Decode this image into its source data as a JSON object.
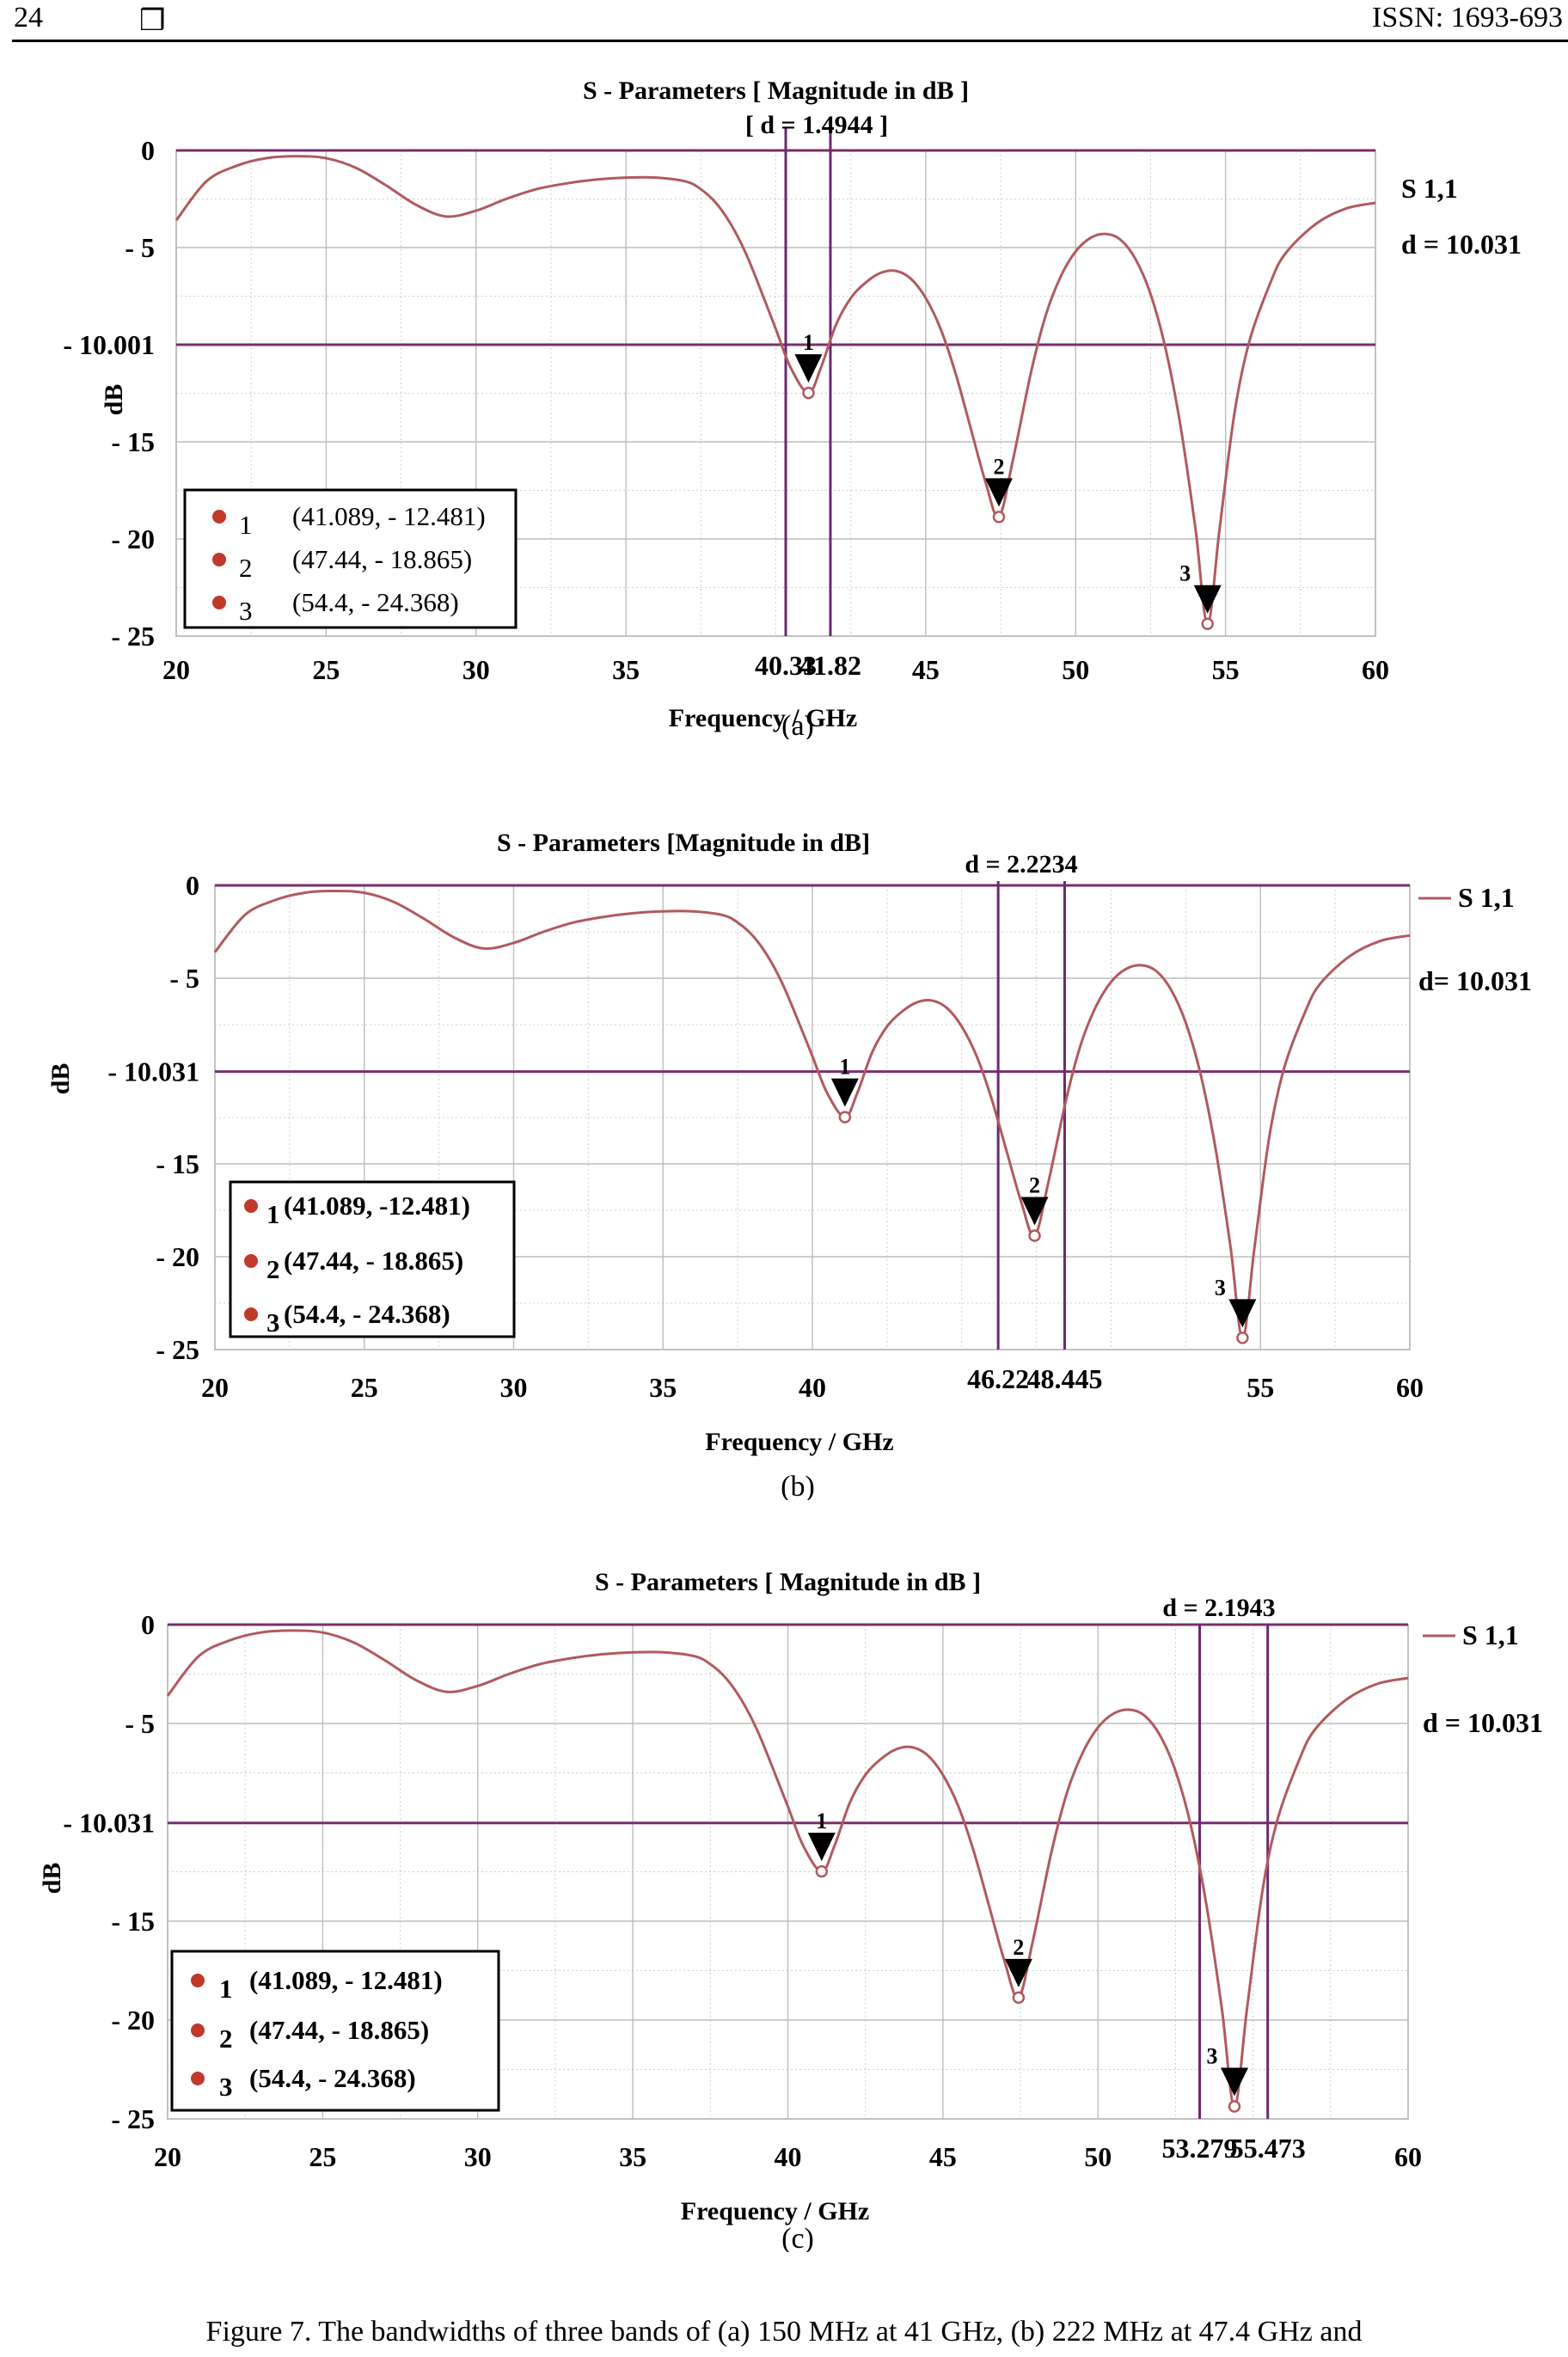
{
  "header": {
    "page_number": "24",
    "box_glyph": "❒",
    "issn": "ISSN: 1693-693"
  },
  "caption": "Figure 7. The bandwidths of three bands of (a) 150 MHz at 41 GHz, (b) 222 MHz at 47.4 GHz and",
  "chart_data": [
    {
      "type": "line",
      "sublabel": "(a)",
      "title": "S - Parameters [ Magnitude in dB ]",
      "subtitle": "[ d = 1.4944 ]",
      "xlabel": "Frequency / GHz",
      "ylabel": "dB",
      "xlim": [
        20,
        60
      ],
      "ylim": [
        -25,
        0
      ],
      "xticks": [
        20,
        25,
        30,
        35,
        45,
        50,
        55,
        60
      ],
      "xtick_labels": [
        "20",
        "25",
        "30",
        "35",
        "45",
        "50",
        "55",
        "60"
      ],
      "yticks": [
        0,
        -5,
        -10.001,
        -15,
        -20,
        -25
      ],
      "ytick_labels": [
        "0",
        "- 5",
        "- 10.001",
        "- 15",
        "- 20",
        "- 25"
      ],
      "threshold": -10.001,
      "bandwidth_lines": [
        40.33,
        41.82
      ],
      "bandwidth_labels": [
        "40.33",
        "41.82"
      ],
      "series_label": "S 1,1",
      "series_color": "#b05a5e",
      "legend_line": false,
      "d_label": "d = 10.031",
      "legend": [
        {
          "num": "1",
          "text": "(41.089, - 12.481)"
        },
        {
          "num": "2",
          "text": "(47.44, - 18.865)"
        },
        {
          "num": "3",
          "text": "(54.4, - 24.368)"
        }
      ],
      "markers": [
        {
          "label": "1",
          "x": 41.089,
          "y": -12.481
        },
        {
          "label": "2",
          "x": 47.44,
          "y": -18.865
        },
        {
          "label": "3",
          "x": 54.4,
          "y": -24.368
        }
      ],
      "x": [
        20,
        21,
        22,
        23,
        24,
        25,
        26,
        27,
        28,
        29,
        30,
        31,
        32,
        33,
        34,
        35,
        36,
        37,
        37.5,
        38,
        38.5,
        39,
        39.5,
        40,
        40.5,
        41.089,
        41.5,
        42,
        42.5,
        43,
        43.5,
        44,
        44.5,
        45,
        45.5,
        46,
        46.5,
        47,
        47.44,
        47.9,
        48.5,
        49,
        49.5,
        50,
        50.5,
        51,
        51.5,
        52,
        52.5,
        53,
        53.5,
        54,
        54.4,
        54.8,
        55.3,
        55.8,
        56.5,
        57,
        58,
        59,
        60
      ],
      "y": [
        -3.6,
        -1.6,
        -0.8,
        -0.4,
        -0.3,
        -0.4,
        -0.9,
        -1.8,
        -2.8,
        -3.4,
        -3.1,
        -2.5,
        -2.0,
        -1.7,
        -1.5,
        -1.4,
        -1.4,
        -1.6,
        -2.0,
        -2.7,
        -3.8,
        -5.3,
        -7.2,
        -9.2,
        -11.2,
        -12.481,
        -11.2,
        -9.0,
        -7.6,
        -6.8,
        -6.3,
        -6.2,
        -6.6,
        -7.6,
        -9.2,
        -11.5,
        -14.3,
        -17.1,
        -18.865,
        -16.0,
        -11.5,
        -8.5,
        -6.5,
        -5.2,
        -4.5,
        -4.3,
        -4.6,
        -5.6,
        -7.4,
        -10.2,
        -14.2,
        -19.5,
        -24.368,
        -19.5,
        -13.5,
        -9.8,
        -6.8,
        -5.3,
        -3.8,
        -3.0,
        -2.7
      ]
    },
    {
      "type": "line",
      "sublabel": "(b)",
      "title": "S - Parameters [Magnitude in dB]",
      "subtitle": "d = 2.2234",
      "xlabel": "Frequency / GHz",
      "ylabel": "dB",
      "xlim": [
        20,
        60
      ],
      "ylim": [
        -25,
        0
      ],
      "xticks": [
        20,
        25,
        30,
        35,
        40,
        55,
        60
      ],
      "xtick_labels": [
        "20",
        "25",
        "30",
        "35",
        "40",
        "55",
        "60"
      ],
      "yticks": [
        0,
        -5,
        -10.031,
        -15,
        -20,
        -25
      ],
      "ytick_labels": [
        "0",
        "- 5",
        "- 10.031",
        "- 15",
        "- 20",
        "- 25"
      ],
      "threshold": -10.031,
      "bandwidth_lines": [
        46.22,
        48.445
      ],
      "bandwidth_labels": [
        "46.22",
        "48.445"
      ],
      "series_label": "S 1,1",
      "series_color": "#b05a5e",
      "legend_line": true,
      "d_label": "d= 10.031",
      "legend": [
        {
          "num": "1",
          "text": "(41.089, -12.481)"
        },
        {
          "num": "2",
          "text": "(47.44, - 18.865)"
        },
        {
          "num": "3",
          "text": "(54.4, - 24.368)"
        }
      ],
      "markers": [
        {
          "label": "1",
          "x": 41.089,
          "y": -12.481
        },
        {
          "label": "2",
          "x": 47.44,
          "y": -18.865
        },
        {
          "label": "3",
          "x": 54.4,
          "y": -24.368
        }
      ],
      "x": [
        20,
        21,
        22,
        23,
        24,
        25,
        26,
        27,
        28,
        29,
        30,
        31,
        32,
        33,
        34,
        35,
        36,
        37,
        37.5,
        38,
        38.5,
        39,
        39.5,
        40,
        40.5,
        41.089,
        41.5,
        42,
        42.5,
        43,
        43.5,
        44,
        44.5,
        45,
        45.5,
        46,
        46.5,
        47,
        47.44,
        47.9,
        48.5,
        49,
        49.5,
        50,
        50.5,
        51,
        51.5,
        52,
        52.5,
        53,
        53.5,
        54,
        54.4,
        54.8,
        55.3,
        55.8,
        56.5,
        57,
        58,
        59,
        60
      ],
      "y": [
        -3.6,
        -1.6,
        -0.8,
        -0.4,
        -0.3,
        -0.4,
        -0.9,
        -1.8,
        -2.8,
        -3.4,
        -3.1,
        -2.5,
        -2.0,
        -1.7,
        -1.5,
        -1.4,
        -1.4,
        -1.6,
        -2.0,
        -2.7,
        -3.8,
        -5.3,
        -7.2,
        -9.2,
        -11.2,
        -12.481,
        -11.2,
        -9.0,
        -7.6,
        -6.8,
        -6.3,
        -6.2,
        -6.6,
        -7.6,
        -9.2,
        -11.5,
        -14.3,
        -17.1,
        -18.865,
        -16.0,
        -11.5,
        -8.5,
        -6.5,
        -5.2,
        -4.5,
        -4.3,
        -4.6,
        -5.6,
        -7.4,
        -10.2,
        -14.2,
        -19.5,
        -24.368,
        -19.5,
        -13.5,
        -9.8,
        -6.8,
        -5.3,
        -3.8,
        -3.0,
        -2.7
      ]
    },
    {
      "type": "line",
      "sublabel": "(c)",
      "title": "S - Parameters [ Magnitude in dB ]",
      "subtitle": "d = 2.1943",
      "xlabel": "Frequency / GHz",
      "ylabel": "dB",
      "xlim": [
        20,
        60
      ],
      "ylim": [
        -25,
        0
      ],
      "xticks": [
        20,
        25,
        30,
        35,
        40,
        45,
        50,
        60
      ],
      "xtick_labels": [
        "20",
        "25",
        "30",
        "35",
        "40",
        "45",
        "50",
        "60"
      ],
      "yticks": [
        0,
        -5,
        -10.031,
        -15,
        -20,
        -25
      ],
      "ytick_labels": [
        "0",
        "- 5",
        "- 10.031",
        "- 15",
        "- 20",
        "- 25"
      ],
      "threshold": -10.031,
      "bandwidth_lines": [
        53.279,
        55.473
      ],
      "bandwidth_labels": [
        "53.279",
        "55.473"
      ],
      "series_label": "S 1,1",
      "series_color": "#b05a5e",
      "legend_line": true,
      "d_label": "d = 10.031",
      "legend": [
        {
          "num": "1",
          "text": "(41.089, - 12.481)"
        },
        {
          "num": "2",
          "text": "(47.44, - 18.865)"
        },
        {
          "num": "3",
          "text": "(54.4, - 24.368)"
        }
      ],
      "markers": [
        {
          "label": "1",
          "x": 41.089,
          "y": -12.481
        },
        {
          "label": "2",
          "x": 47.44,
          "y": -18.865
        },
        {
          "label": "3",
          "x": 54.4,
          "y": -24.368
        }
      ],
      "x": [
        20,
        21,
        22,
        23,
        24,
        25,
        26,
        27,
        28,
        29,
        30,
        31,
        32,
        33,
        34,
        35,
        36,
        37,
        37.5,
        38,
        38.5,
        39,
        39.5,
        40,
        40.5,
        41.089,
        41.5,
        42,
        42.5,
        43,
        43.5,
        44,
        44.5,
        45,
        45.5,
        46,
        46.5,
        47,
        47.44,
        47.9,
        48.5,
        49,
        49.5,
        50,
        50.5,
        51,
        51.5,
        52,
        52.5,
        53,
        53.5,
        54,
        54.4,
        54.8,
        55.3,
        55.8,
        56.5,
        57,
        58,
        59,
        60
      ],
      "y": [
        -3.6,
        -1.6,
        -0.8,
        -0.4,
        -0.3,
        -0.4,
        -0.9,
        -1.8,
        -2.8,
        -3.4,
        -3.1,
        -2.5,
        -2.0,
        -1.7,
        -1.5,
        -1.4,
        -1.4,
        -1.6,
        -2.0,
        -2.7,
        -3.8,
        -5.3,
        -7.2,
        -9.2,
        -11.2,
        -12.481,
        -11.2,
        -9.0,
        -7.6,
        -6.8,
        -6.3,
        -6.2,
        -6.6,
        -7.6,
        -9.2,
        -11.5,
        -14.3,
        -17.1,
        -18.865,
        -16.0,
        -11.5,
        -8.5,
        -6.5,
        -5.2,
        -4.5,
        -4.3,
        -4.6,
        -5.6,
        -7.4,
        -10.2,
        -14.2,
        -19.5,
        -24.368,
        -19.5,
        -13.5,
        -9.8,
        -6.8,
        -5.3,
        -3.8,
        -3.0,
        -2.7
      ]
    }
  ]
}
